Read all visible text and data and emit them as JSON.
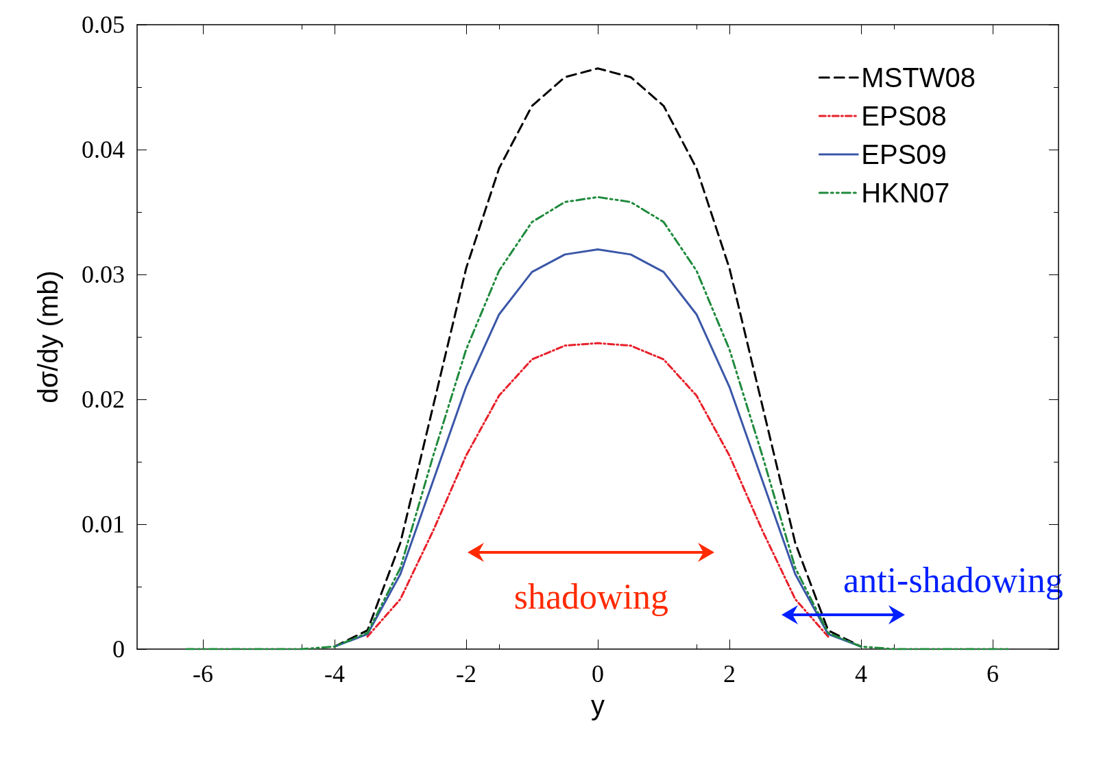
{
  "chart_data": {
    "type": "line",
    "xlabel": "y",
    "ylabel": "dσ/dy (mb)",
    "xlim": [
      -7,
      7
    ],
    "xticks": [
      -6,
      -4,
      -2,
      0,
      2,
      4,
      6
    ],
    "ylim": [
      0,
      0.05
    ],
    "yticks": [
      0,
      0.01,
      0.02,
      0.03,
      0.04,
      0.05
    ],
    "grid": false,
    "legend": "top right",
    "marker": "none",
    "x": [
      -6.25,
      -5,
      -4.5,
      -4,
      -3.5,
      -3,
      -2.5,
      -2,
      -1.5,
      -1,
      -0.5,
      0,
      0.5,
      1,
      1.5,
      2,
      2.5,
      3,
      3.5,
      4,
      4.5,
      5,
      6.25
    ],
    "series": [
      {
        "name": "MSTW08",
        "color": "#000000",
        "line_style": "dashed",
        "values": [
          null,
          null,
          null,
          0.0002,
          0.0015,
          0.0085,
          0.0195,
          0.0305,
          0.0385,
          0.0435,
          0.0458,
          0.0465,
          0.0458,
          0.0435,
          0.0385,
          0.0305,
          0.0195,
          0.0085,
          0.0015,
          0.0002,
          null,
          null,
          null
        ]
      },
      {
        "name": "EPS08",
        "color": "#e8202a",
        "line_style": "dashdot",
        "values": [
          null,
          null,
          null,
          null,
          0.001,
          0.004,
          0.0095,
          0.0155,
          0.0203,
          0.0232,
          0.0243,
          0.0245,
          0.0243,
          0.0232,
          0.0203,
          0.0155,
          0.0095,
          0.004,
          0.001,
          null,
          null,
          null,
          null
        ]
      },
      {
        "name": "EPS09",
        "color": "#3a57a8",
        "line_style": "solid",
        "values": [
          null,
          null,
          null,
          0.0002,
          0.0012,
          0.006,
          0.0135,
          0.021,
          0.0268,
          0.0302,
          0.0316,
          0.032,
          0.0316,
          0.0302,
          0.0268,
          0.021,
          0.0135,
          0.006,
          0.0012,
          0.0002,
          null,
          null,
          null
        ]
      },
      {
        "name": "HKN07",
        "color": "#1f8a3c",
        "line_style": "dashdotdot",
        "values": [
          0,
          0,
          0,
          0.0002,
          0.0013,
          0.0065,
          0.0155,
          0.024,
          0.0303,
          0.0342,
          0.0358,
          0.0362,
          0.0358,
          0.0342,
          0.0303,
          0.024,
          0.0155,
          0.0065,
          0.0013,
          0.0002,
          0,
          0,
          0
        ]
      }
    ],
    "annotations": [
      "shadowing",
      "anti-shadowing"
    ]
  }
}
